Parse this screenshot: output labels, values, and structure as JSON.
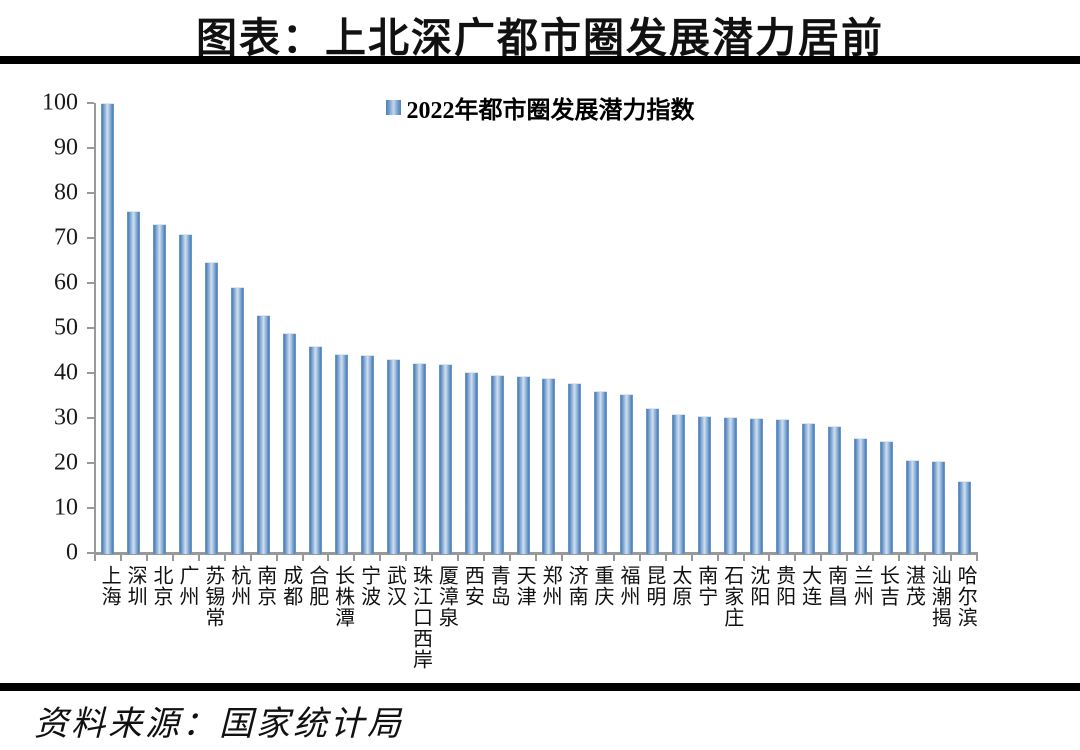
{
  "title": "图表：上北深广都市圈发展潜力居前",
  "legend_label": "2022年都市圈发展潜力指数",
  "source": "资料来源：国家统计局",
  "colors": {
    "bar_dark": "#4f81bd",
    "bar_light": "#d2dfee",
    "axis": "#999999",
    "rule": "#000000",
    "text": "#111111"
  },
  "chart_data": {
    "type": "bar",
    "title": "图表：上北深广都市圈发展潜力居前",
    "legend": [
      "2022年都市圈发展潜力指数"
    ],
    "legend_position": "top-center",
    "grid": false,
    "xlabel": "",
    "ylabel": "",
    "ylim": [
      0,
      100
    ],
    "ytick_step": 10,
    "yticks": [
      0,
      10,
      20,
      30,
      40,
      50,
      60,
      70,
      80,
      90,
      100
    ],
    "categories": [
      "上海",
      "深圳",
      "北京",
      "广州",
      "苏锡常",
      "杭州",
      "南京",
      "成都",
      "合肥",
      "长株潭",
      "宁波",
      "武汉",
      "珠江口西岸",
      "厦漳泉",
      "西安",
      "青岛",
      "天津",
      "郑州",
      "济南",
      "重庆",
      "福州",
      "昆明",
      "太原",
      "南宁",
      "石家庄",
      "沈阳",
      "贵阳",
      "大连",
      "南昌",
      "兰州",
      "长吉",
      "湛茂",
      "汕潮揭",
      "哈尔滨"
    ],
    "values": [
      100,
      75.9,
      73.2,
      71.0,
      64.6,
      59.2,
      52.8,
      48.9,
      45.9,
      44.3,
      44.0,
      43.1,
      42.3,
      42.1,
      40.3,
      39.6,
      39.3,
      38.8,
      37.7,
      36.0,
      35.4,
      32.2,
      31.0,
      30.5,
      30.2,
      30.0,
      29.8,
      29.0,
      28.2,
      25.5,
      24.8,
      20.6,
      20.5,
      15.9
    ]
  }
}
